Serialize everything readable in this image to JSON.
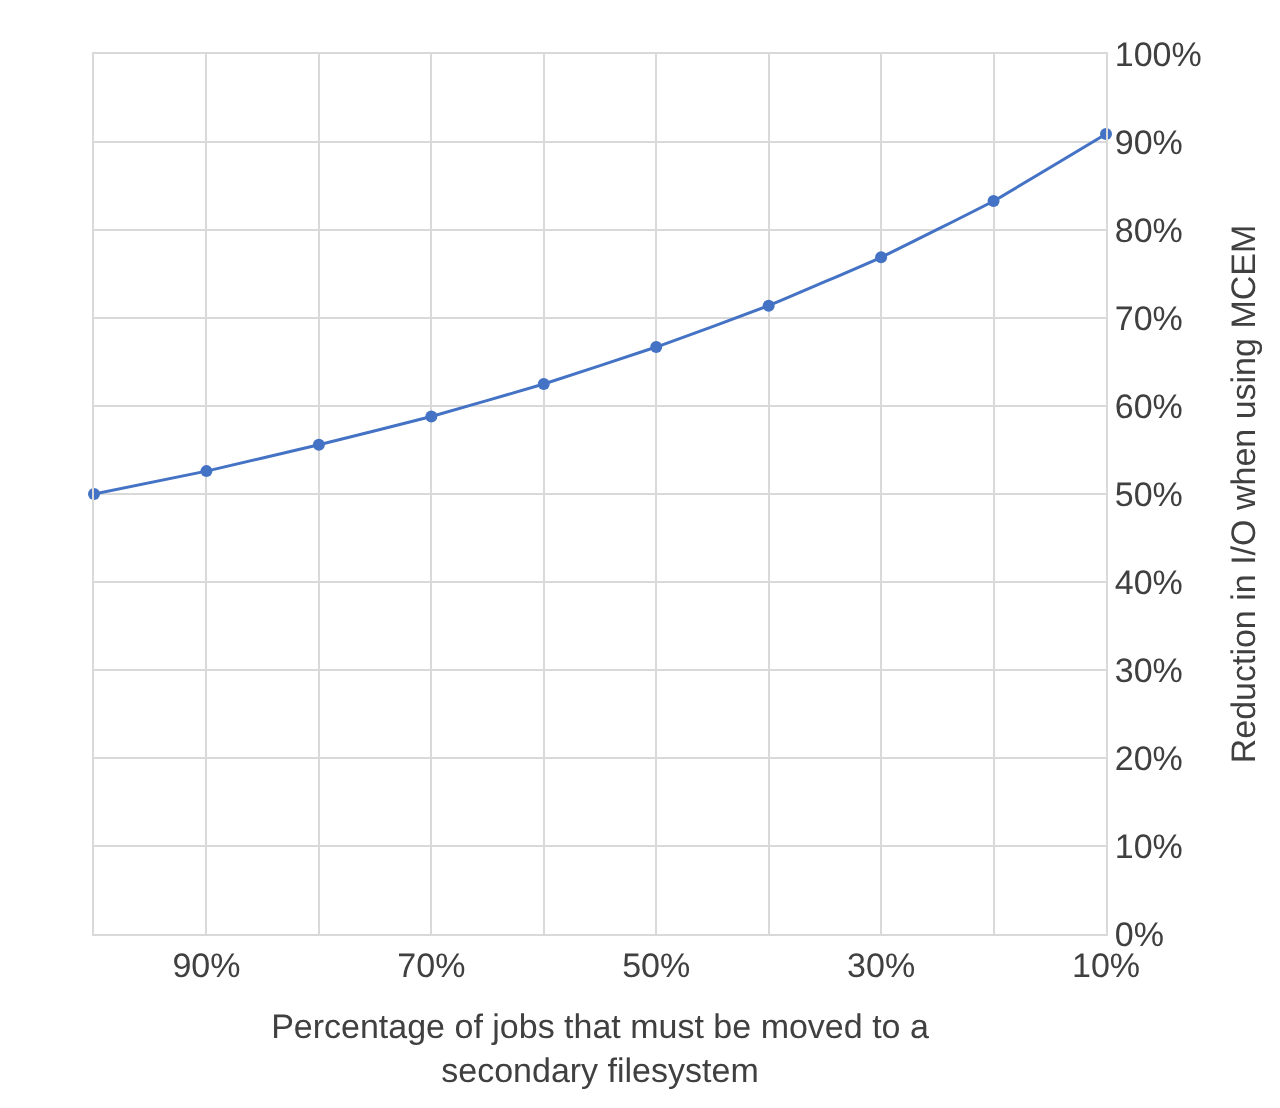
{
  "chart_data": {
    "type": "line",
    "xlabel": "Percentage of jobs that must be moved to a\nsecondary filesystem",
    "ylabel": "Reduction in I/O when using MCEM",
    "x": [
      100,
      90,
      80,
      70,
      60,
      50,
      40,
      30,
      20,
      10
    ],
    "series": [
      {
        "color": "#4472c4",
        "values": [
          50,
          52.6,
          55.6,
          58.8,
          62.5,
          66.7,
          71.4,
          76.9,
          83.3,
          90.9
        ]
      }
    ],
    "xlim": [
      100,
      10
    ],
    "xticks": [
      {
        "value": 100,
        "label": null
      },
      {
        "value": 90,
        "label": "90%"
      },
      {
        "value": 80,
        "label": null
      },
      {
        "value": 70,
        "label": "70%"
      },
      {
        "value": 60,
        "label": null
      },
      {
        "value": 50,
        "label": "50%"
      },
      {
        "value": 40,
        "label": null
      },
      {
        "value": 30,
        "label": "30%"
      },
      {
        "value": 20,
        "label": null
      },
      {
        "value": 10,
        "label": "10%"
      }
    ],
    "ylim": [
      0,
      100
    ],
    "yticks": [
      {
        "value": 0,
        "label": "0%"
      },
      {
        "value": 10,
        "label": "10%"
      },
      {
        "value": 20,
        "label": "20%"
      },
      {
        "value": 30,
        "label": "30%"
      },
      {
        "value": 40,
        "label": "40%"
      },
      {
        "value": 50,
        "label": "50%"
      },
      {
        "value": 60,
        "label": "60%"
      },
      {
        "value": 70,
        "label": "70%"
      },
      {
        "value": 80,
        "label": "80%"
      },
      {
        "value": 90,
        "label": "90%"
      },
      {
        "value": 100,
        "label": "100%"
      }
    ],
    "grid": true,
    "marker": "circle",
    "line_style": "solid"
  }
}
